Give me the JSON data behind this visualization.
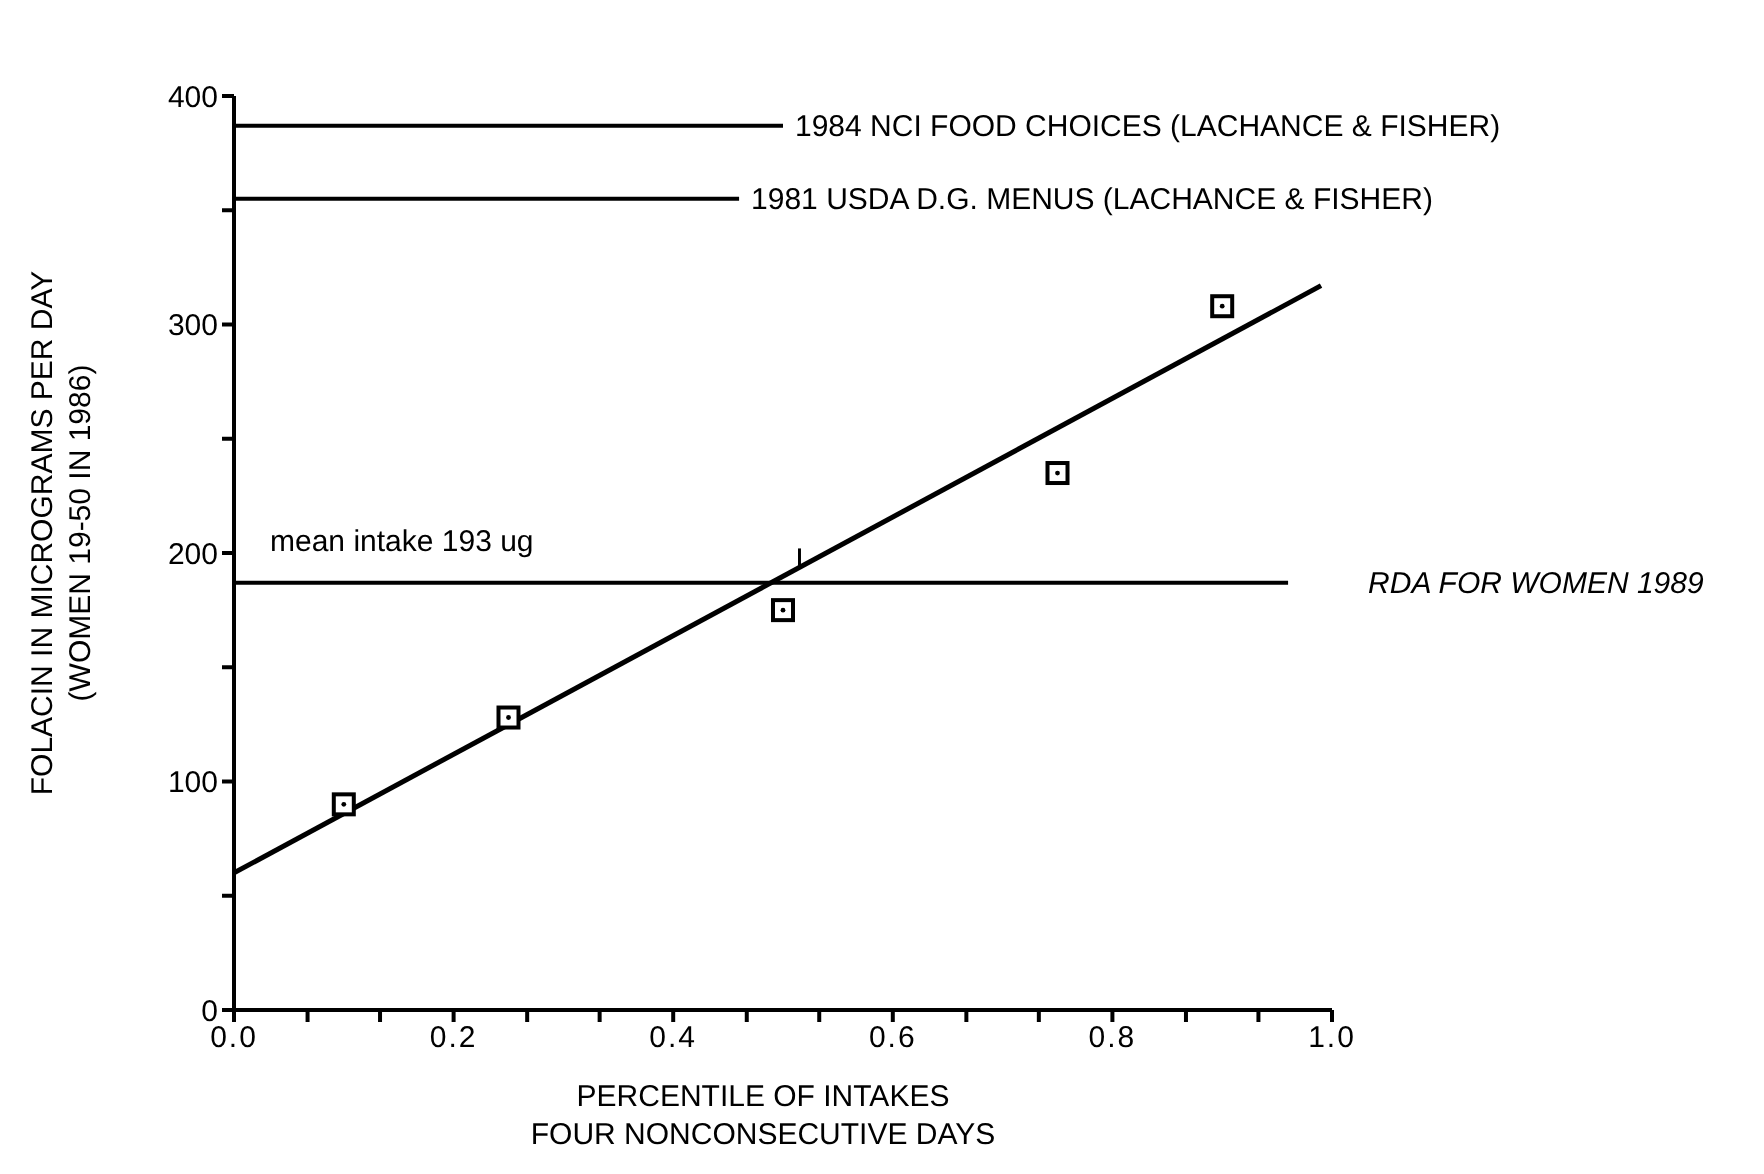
{
  "chart_data": {
    "type": "scatter",
    "xlabel": "PERCENTILE OF INTAKES\nFOUR NONCONSECUTIVE DAYS",
    "ylabel": "FOLACIN IN MICROGRAMS PER DAY\n(WOMEN 19-50 IN 1986)",
    "xlim": [
      0,
      1
    ],
    "ylim": [
      0,
      400
    ],
    "xticks": [
      {
        "value": 0,
        "label": "0.0"
      },
      {
        "value": 0.067,
        "label": null
      },
      {
        "value": 0.133,
        "label": null
      },
      {
        "value": 0.2,
        "label": "0.2"
      },
      {
        "value": 0.267,
        "label": null
      },
      {
        "value": 0.333,
        "label": null
      },
      {
        "value": 0.4,
        "label": "0.4"
      },
      {
        "value": 0.467,
        "label": null
      },
      {
        "value": 0.533,
        "label": null
      },
      {
        "value": 0.6,
        "label": "0.6"
      },
      {
        "value": 0.667,
        "label": null
      },
      {
        "value": 0.733,
        "label": null
      },
      {
        "value": 0.8,
        "label": "0.8"
      },
      {
        "value": 0.867,
        "label": null
      },
      {
        "value": 0.933,
        "label": null
      },
      {
        "value": 1,
        "label": "1.0"
      }
    ],
    "yticks": [
      0,
      {
        "value": 50,
        "label": null
      },
      100,
      {
        "value": 150,
        "label": null
      },
      200,
      {
        "value": 250,
        "label": null
      },
      300,
      {
        "value": 350,
        "label": null
      },
      400
    ],
    "marker": "square",
    "series": [
      {
        "color": "#000000",
        "x": [
          0.1,
          0.25,
          0.5,
          0.75,
          0.9
        ],
        "values": [
          90,
          128,
          175,
          235,
          308
        ]
      },
      {
        "type": "line",
        "color": "#000000",
        "marker": "none",
        "x": [
          0,
          0.99
        ],
        "values": [
          60,
          317
        ]
      }
    ],
    "ref_lines": [
      {
        "axis": "y",
        "value": 387,
        "label": "1984 NCI FOOD CHOICES (LACHANCE & FISHER)",
        "color": "#000000"
      },
      {
        "axis": "y",
        "value": 355,
        "label": "1981 USDA D.G. MENUS (LACHANCE & FISHER)",
        "color": "#000000"
      },
      {
        "axis": "y",
        "value": 187,
        "label": "RDA FOR WOMEN 1989",
        "color": "#000000"
      }
    ],
    "annotations": [
      "mean intake 193 ug"
    ]
  }
}
